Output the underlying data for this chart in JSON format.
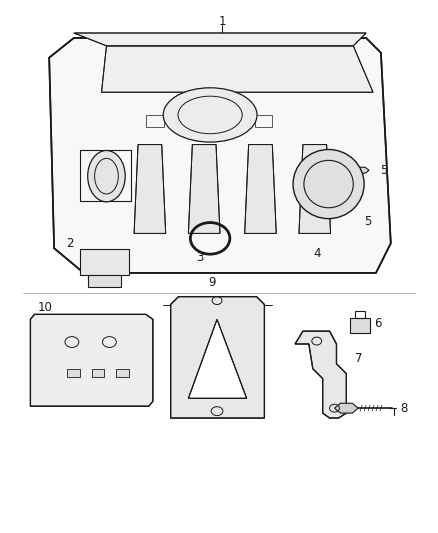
{
  "bg_color": "#ffffff",
  "fig_width": 4.38,
  "fig_height": 5.33,
  "dpi": 100,
  "line_color": "#1a1a1a",
  "label_color": "#1a1a1a",
  "font_size": 8.5
}
